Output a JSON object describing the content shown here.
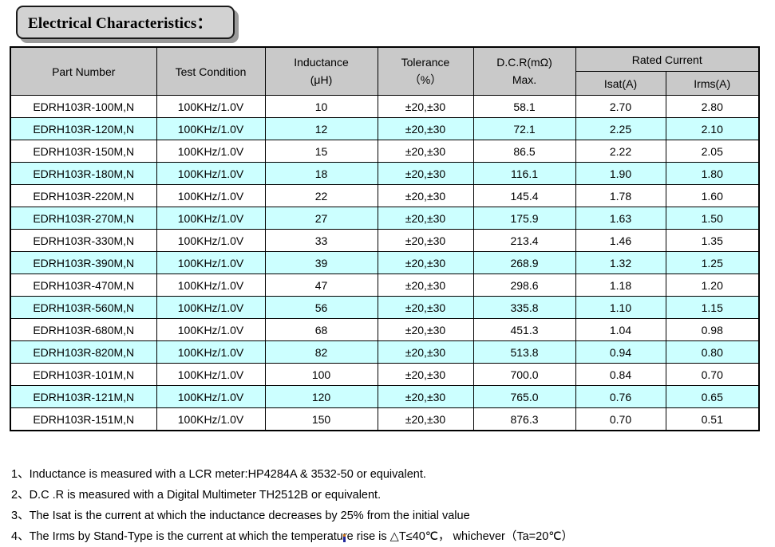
{
  "title": "Electrical Characteristics：",
  "table": {
    "headers": {
      "part_number": "Part Number",
      "test_condition": "Test Condition",
      "inductance": [
        "Inductance",
        "(μH)"
      ],
      "tolerance": [
        "Tolerance",
        "（%）"
      ],
      "dcr": [
        "D.C.R(mΩ)",
        "Max."
      ],
      "rated_current": "Rated Current",
      "isat": "Isat(A)",
      "irms": "Irms(A)"
    },
    "rows": [
      [
        "EDRH103R-100M,N",
        "100KHz/1.0V",
        "10",
        "±20,±30",
        "58.1",
        "2.70",
        "2.80"
      ],
      [
        "EDRH103R-120M,N",
        "100KHz/1.0V",
        "12",
        "±20,±30",
        "72.1",
        "2.25",
        "2.10"
      ],
      [
        "EDRH103R-150M,N",
        "100KHz/1.0V",
        "15",
        "±20,±30",
        "86.5",
        "2.22",
        "2.05"
      ],
      [
        "EDRH103R-180M,N",
        "100KHz/1.0V",
        "18",
        "±20,±30",
        "116.1",
        "1.90",
        "1.80"
      ],
      [
        "EDRH103R-220M,N",
        "100KHz/1.0V",
        "22",
        "±20,±30",
        "145.4",
        "1.78",
        "1.60"
      ],
      [
        "EDRH103R-270M,N",
        "100KHz/1.0V",
        "27",
        "±20,±30",
        "175.9",
        "1.63",
        "1.50"
      ],
      [
        "EDRH103R-330M,N",
        "100KHz/1.0V",
        "33",
        "±20,±30",
        "213.4",
        "1.46",
        "1.35"
      ],
      [
        "EDRH103R-390M,N",
        "100KHz/1.0V",
        "39",
        "±20,±30",
        "268.9",
        "1.32",
        "1.25"
      ],
      [
        "EDRH103R-470M,N",
        "100KHz/1.0V",
        "47",
        "±20,±30",
        "298.6",
        "1.18",
        "1.20"
      ],
      [
        "EDRH103R-560M,N",
        "100KHz/1.0V",
        "56",
        "±20,±30",
        "335.8",
        "1.10",
        "1.15"
      ],
      [
        "EDRH103R-680M,N",
        "100KHz/1.0V",
        "68",
        "±20,±30",
        "451.3",
        "1.04",
        "0.98"
      ],
      [
        "EDRH103R-820M,N",
        "100KHz/1.0V",
        "82",
        "±20,±30",
        "513.8",
        "0.94",
        "0.80"
      ],
      [
        "EDRH103R-101M,N",
        "100KHz/1.0V",
        "100",
        "±20,±30",
        "700.0",
        "0.84",
        "0.70"
      ],
      [
        "EDRH103R-121M,N",
        "100KHz/1.0V",
        "120",
        "±20,±30",
        "765.0",
        "0.76",
        "0.65"
      ],
      [
        "EDRH103R-151M,N",
        "100KHz/1.0V",
        "150",
        "±20,±30",
        "876.3",
        "0.70",
        "0.51"
      ]
    ]
  },
  "notes": [
    "1、Inductance is measured with a LCR meter:HP4284A & 3532-50 or equivalent.",
    "2、D.C .R is measured with a Digital Multimeter TH2512B or equivalent.",
    "3、The Isat is the current at which the inductance decreases by 25% from the initial value",
    "4、The Irms by Stand-Type is the current at which the temperature rise is △T≤40℃， whichever（Ta=20℃）"
  ],
  "colors": {
    "row_highlight": "#ccffff",
    "header_bg": "#c9c9c9",
    "title_bg": "#d2d2d2",
    "border": "#000000"
  }
}
